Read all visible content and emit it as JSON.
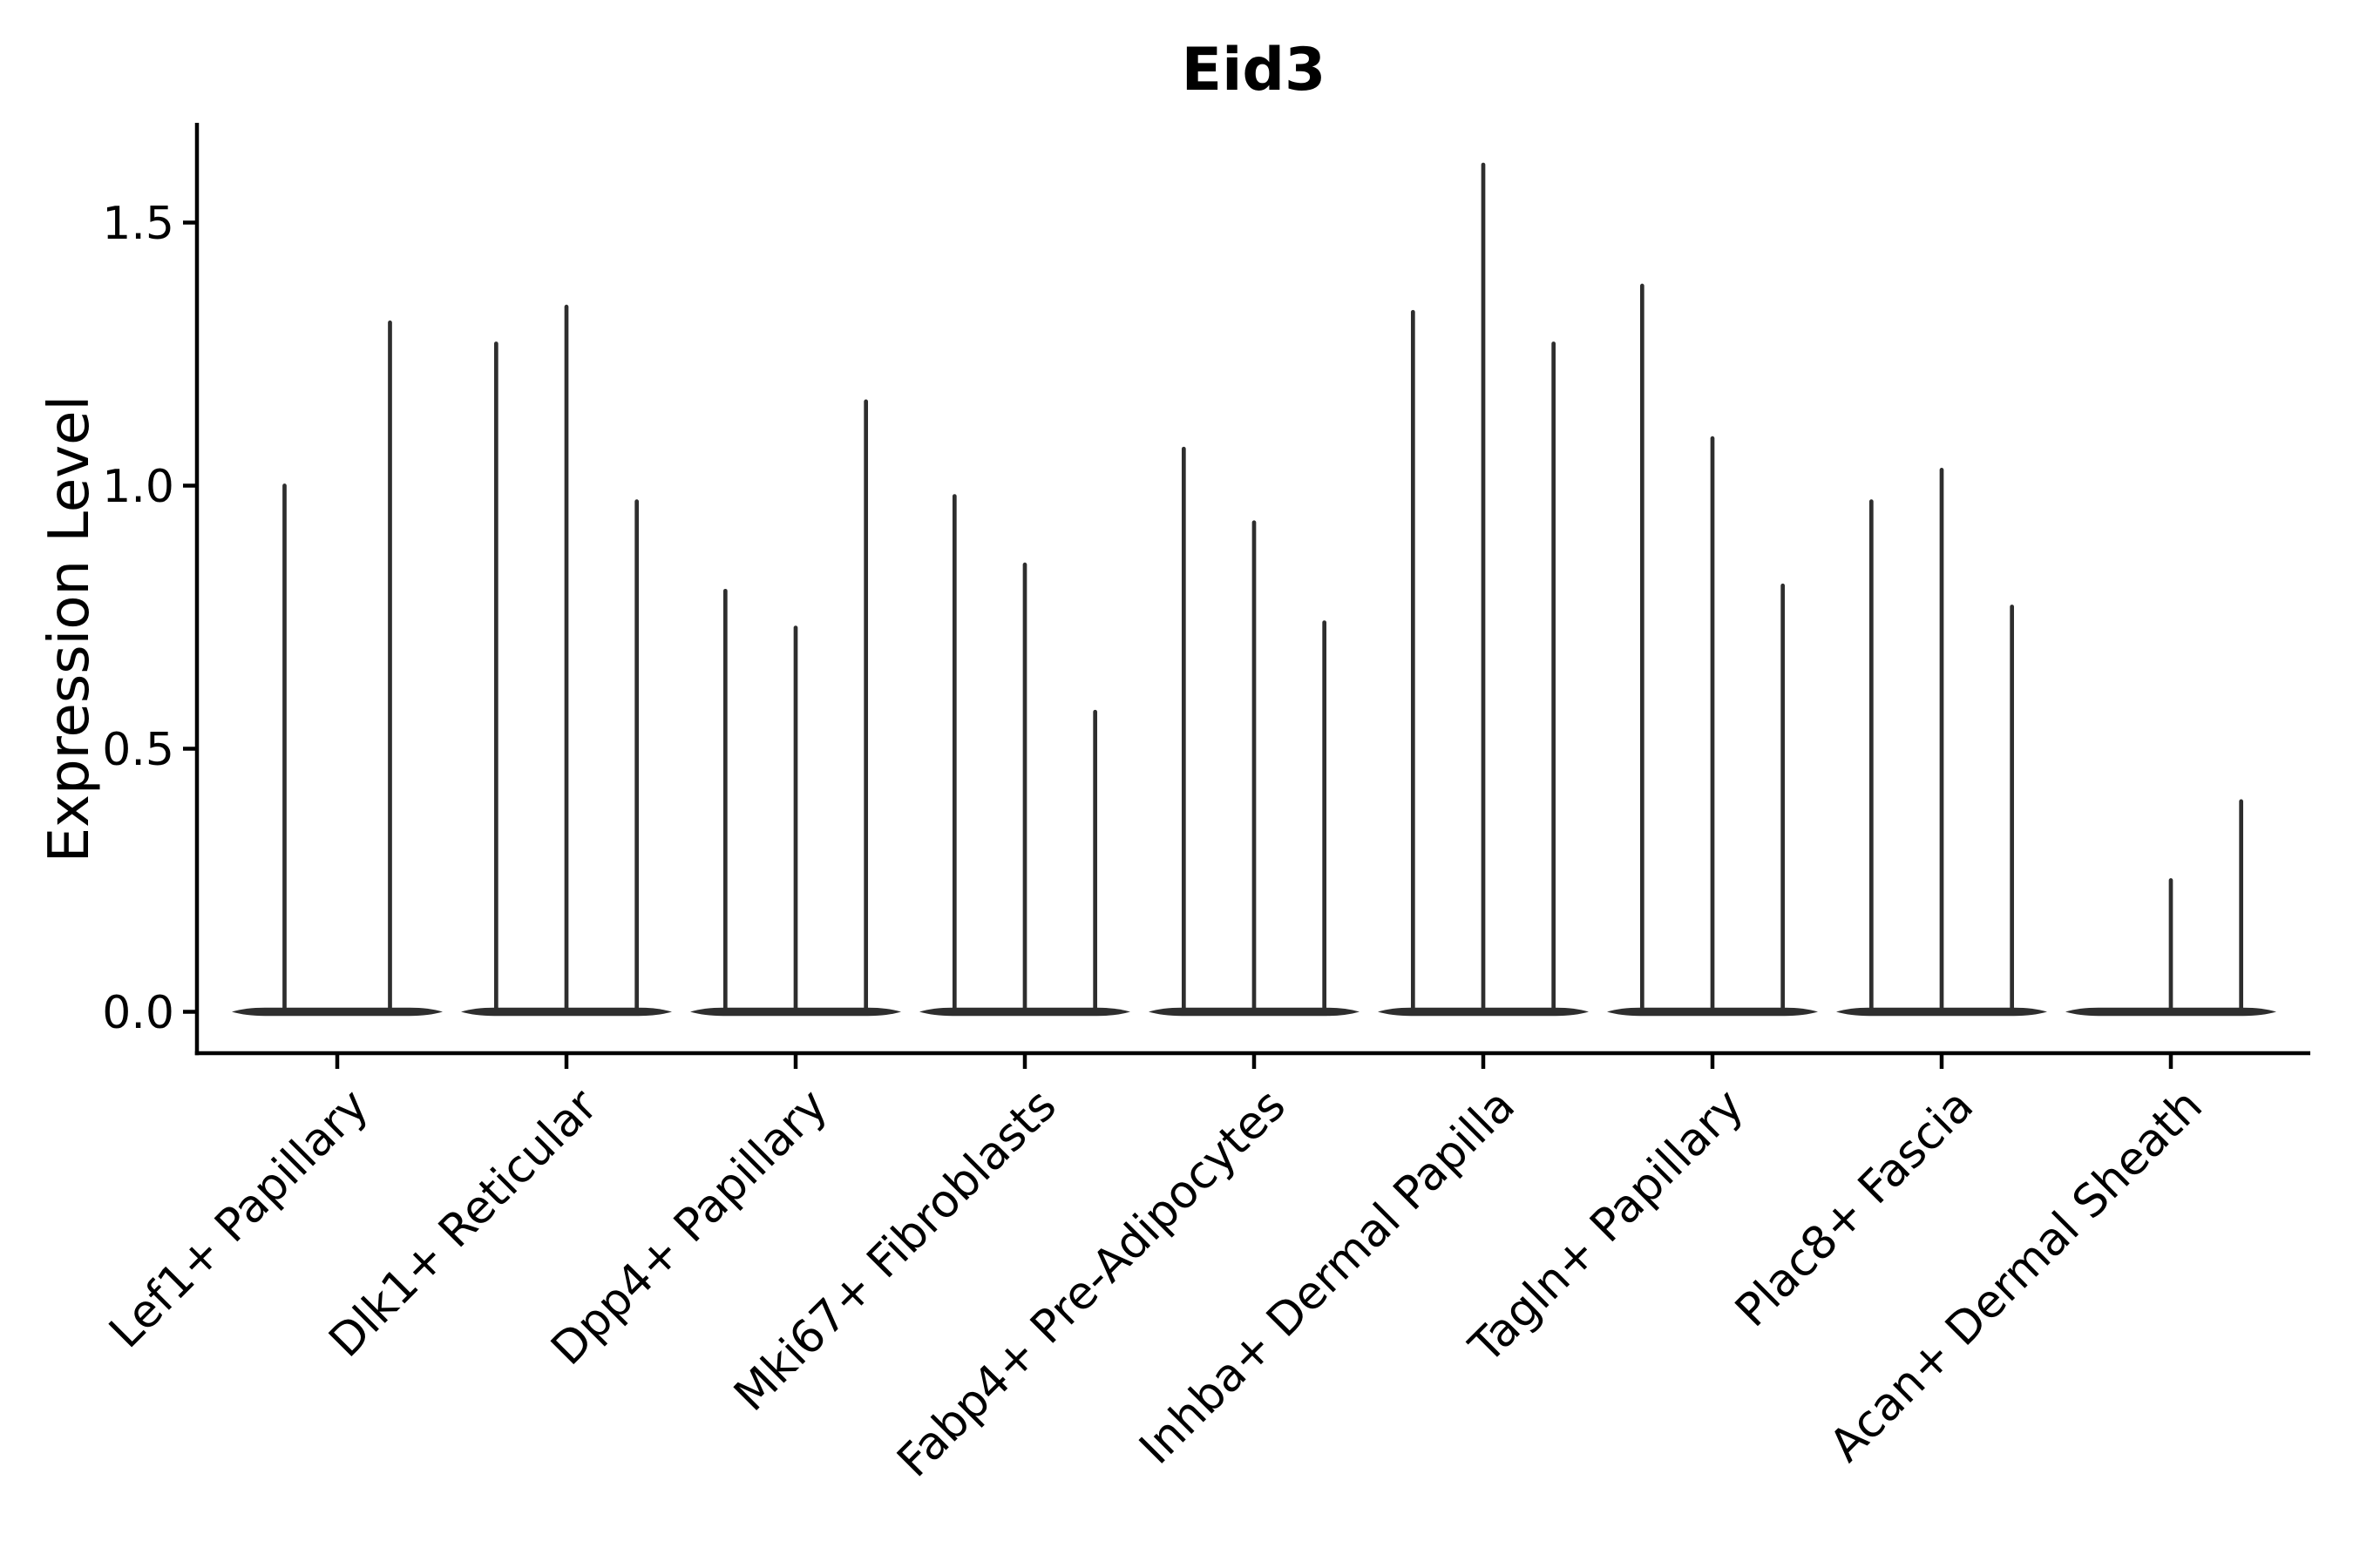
{
  "chart_data": {
    "type": "violin",
    "title": "Eid3",
    "xlabel": "",
    "ylabel": "Expression Level",
    "y_tick_labels": [
      "0.0",
      "0.5",
      "1.0",
      "1.5"
    ],
    "y_tick_values": [
      0.0,
      0.5,
      1.0,
      1.5
    ],
    "ylim": [
      -0.08,
      1.69
    ],
    "grid": "off",
    "legend": "none",
    "categories": [
      "Lef1+ Papillary",
      "Dlk1+ Reticular",
      "Dpp4+ Papillary",
      "Mki67+ Fibroblasts",
      "Fabp4+ Pre-Adipocytes",
      "Inhba+ Dermal Papilla",
      "Tagln+ Papillary",
      "Plac8+ Fascia",
      "Acan+ Dermal Sheath"
    ],
    "violins": [
      {
        "category": "Lef1+ Papillary",
        "max_values": [
          1.0,
          1.31
        ]
      },
      {
        "category": "Dlk1+ Reticular",
        "max_values": [
          1.27,
          1.34,
          0.97
        ]
      },
      {
        "category": "Dpp4+ Papillary",
        "max_values": [
          0.8,
          0.73,
          1.16
        ]
      },
      {
        "category": "Mki67+ Fibroblasts",
        "max_values": [
          0.98,
          0.85,
          0.57
        ]
      },
      {
        "category": "Fabp4+ Pre-Adipocytes",
        "max_values": [
          1.07,
          0.93,
          0.74
        ]
      },
      {
        "category": "Inhba+ Dermal Papilla",
        "max_values": [
          1.33,
          1.61,
          1.27
        ]
      },
      {
        "category": "Tagln+ Papillary",
        "max_values": [
          1.38,
          1.09,
          0.81
        ]
      },
      {
        "category": "Plac8+ Fascia",
        "max_values": [
          0.97,
          1.03,
          0.77
        ]
      },
      {
        "category": "Acan+ Dermal Sheath",
        "max_values": [
          0,
          0.25,
          0.4
        ]
      }
    ],
    "colors": {
      "violin": "#2e2e2e",
      "axis": "#000000",
      "text": "#000000",
      "background": "#ffffff"
    }
  }
}
